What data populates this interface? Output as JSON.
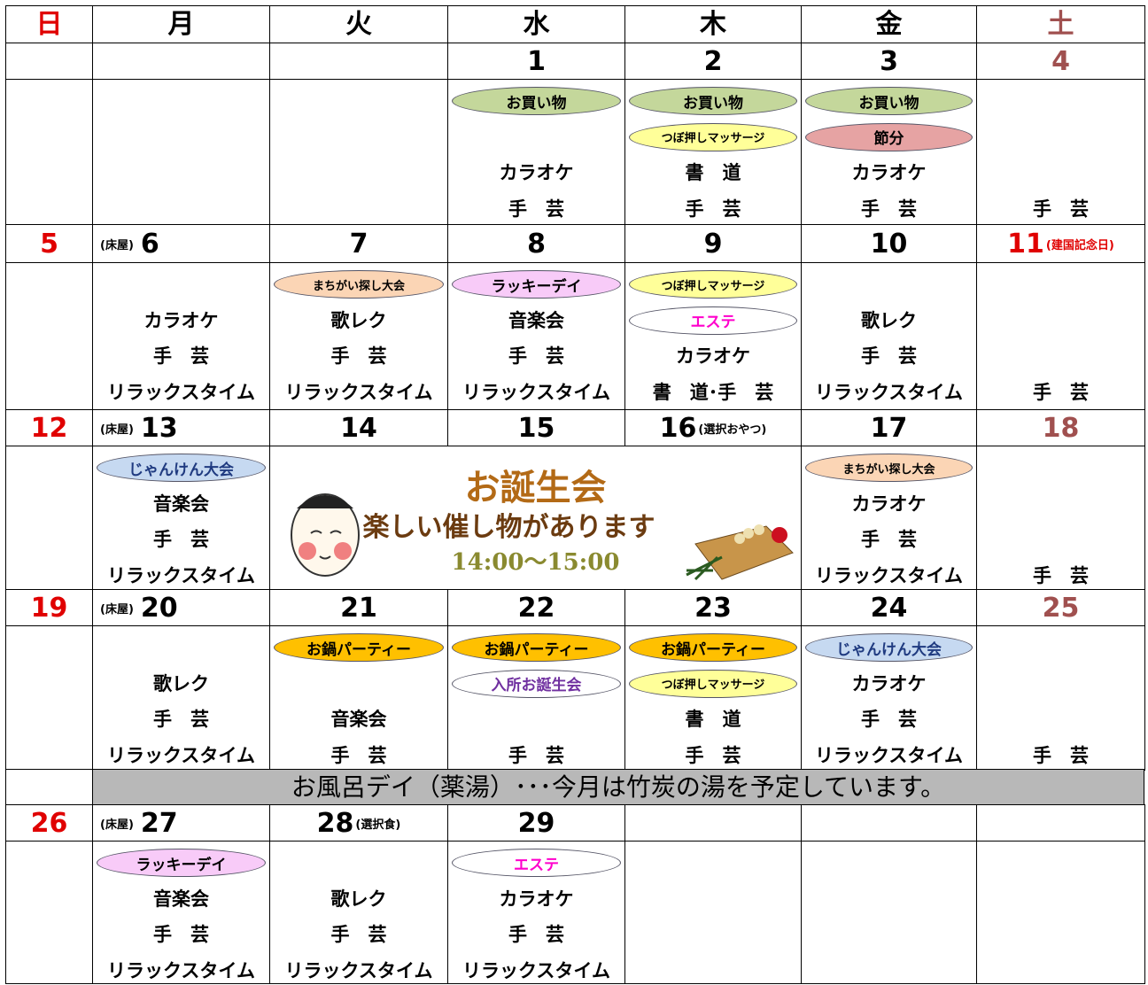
{
  "weekdays": [
    "日",
    "月",
    "火",
    "水",
    "木",
    "金",
    "土"
  ],
  "weeks": [
    {
      "days": [
        {
          "date": null,
          "events": []
        },
        {
          "date": null,
          "events": []
        },
        {
          "date": null,
          "events": []
        },
        {
          "date": 1,
          "events": [
            {
              "text": "お買い物",
              "fill": "#c4d79b",
              "color": "#000"
            },
            null,
            "カラオケ",
            "手　芸"
          ]
        },
        {
          "date": 2,
          "events": [
            {
              "text": "お買い物",
              "fill": "#c4d79b",
              "color": "#000"
            },
            {
              "text": "つぼ押しマッサージ",
              "fill": "#ffff99",
              "color": "#000"
            },
            "書　道",
            "手　芸"
          ]
        },
        {
          "date": 3,
          "events": [
            {
              "text": "お買い物",
              "fill": "#c4d79b",
              "color": "#000"
            },
            {
              "text": "節分",
              "fill": "#e6a3a3",
              "color": "#000"
            },
            "カラオケ",
            "手　芸"
          ]
        },
        {
          "date": 4,
          "events": [
            null,
            null,
            null,
            "手　芸"
          ]
        }
      ]
    },
    {
      "days": [
        {
          "date": 5,
          "events": []
        },
        {
          "date": 6,
          "prefix": "(床屋)",
          "events": [
            null,
            "カラオケ",
            "手　芸",
            "リラックスタイム"
          ]
        },
        {
          "date": 7,
          "events": [
            {
              "text": "まちがい探し大会",
              "fill": "#fbd5b5",
              "color": "#000"
            },
            "歌レク",
            "手　芸",
            "リラックスタイム"
          ]
        },
        {
          "date": 8,
          "events": [
            {
              "text": "ラッキーデイ",
              "fill": "#f8cbf8",
              "color": "#000"
            },
            "音楽会",
            "手　芸",
            "リラックスタイム"
          ]
        },
        {
          "date": 9,
          "events": [
            {
              "text": "つぼ押しマッサージ",
              "fill": "#ffff99",
              "color": "#000"
            },
            {
              "text": "エステ",
              "fill": "#ffffff",
              "color": "#ff00cc"
            },
            "カラオケ",
            "書　道･手　芸"
          ]
        },
        {
          "date": 10,
          "events": [
            null,
            "歌レク",
            "手　芸",
            "リラックスタイム"
          ]
        },
        {
          "date": 11,
          "suffix": "(建国記念日)",
          "date_color": "#e00000",
          "events": [
            null,
            null,
            null,
            "手　芸"
          ]
        }
      ]
    },
    {
      "days": [
        {
          "date": 12,
          "events": []
        },
        {
          "date": 13,
          "prefix": "(床屋)",
          "events": [
            {
              "text": "じゃんけん大会",
              "fill": "#c6d9f1",
              "color": "#1f3a80"
            },
            "音楽会",
            "手　芸",
            "リラックスタイム"
          ]
        },
        {
          "date": 14,
          "events": []
        },
        {
          "date": 15,
          "events": []
        },
        {
          "date": 16,
          "suffix": "(選択おやつ)",
          "events": []
        },
        {
          "date": 17,
          "events": [
            {
              "text": "まちがい探し大会",
              "fill": "#fbd5b5",
              "color": "#000"
            },
            "カラオケ",
            "手　芸",
            "リラックスタイム"
          ]
        },
        {
          "date": 18,
          "events": [
            null,
            null,
            null,
            "手　芸"
          ]
        }
      ],
      "banner": {
        "title": "お誕生会",
        "subtitle": "楽しい催し物があります",
        "time": "14:00～15:00"
      }
    },
    {
      "days": [
        {
          "date": 19,
          "events": []
        },
        {
          "date": 20,
          "prefix": "(床屋)",
          "events": [
            null,
            "歌レク",
            "手　芸",
            "リラックスタイム"
          ]
        },
        {
          "date": 21,
          "events": [
            {
              "text": "お鍋パーティー",
              "fill": "#ffc000",
              "color": "#000"
            },
            null,
            "音楽会",
            "手　芸"
          ]
        },
        {
          "date": 22,
          "events": [
            {
              "text": "お鍋パーティー",
              "fill": "#ffc000",
              "color": "#000"
            },
            {
              "text": "入所お誕生会",
              "fill": "#ffffff",
              "color": "#7030a0"
            },
            null,
            "手　芸"
          ]
        },
        {
          "date": 23,
          "events": [
            {
              "text": "お鍋パーティー",
              "fill": "#ffc000",
              "color": "#000"
            },
            {
              "text": "つぼ押しマッサージ",
              "fill": "#ffff99",
              "color": "#000"
            },
            "書　道",
            "手　芸"
          ]
        },
        {
          "date": 24,
          "events": [
            {
              "text": "じゃんけん大会",
              "fill": "#c6d9f1",
              "color": "#1f3a80"
            },
            "カラオケ",
            "手　芸",
            "リラックスタイム"
          ]
        },
        {
          "date": 25,
          "events": [
            null,
            null,
            null,
            "手　芸"
          ]
        }
      ]
    },
    {
      "days": [
        {
          "date": 26,
          "events": []
        },
        {
          "date": 27,
          "prefix": "(床屋)",
          "events": [
            {
              "text": "ラッキーデイ",
              "fill": "#f8cbf8",
              "color": "#000"
            },
            "音楽会",
            "手　芸",
            "リラックスタイム"
          ]
        },
        {
          "date": 28,
          "suffix": "(選択食)",
          "events": [
            null,
            "歌レク",
            "手　芸",
            "リラックスタイム"
          ]
        },
        {
          "date": 29,
          "events": [
            {
              "text": "エステ",
              "fill": "#ffffff",
              "color": "#ff00cc"
            },
            "カラオケ",
            "手　芸",
            "リラックスタイム"
          ]
        },
        {
          "date": null,
          "events": []
        },
        {
          "date": null,
          "events": []
        },
        {
          "date": null,
          "events": []
        }
      ]
    }
  ],
  "bath": "お風呂デイ（薬湯）･･･今月は竹炭の湯を予定しています。"
}
